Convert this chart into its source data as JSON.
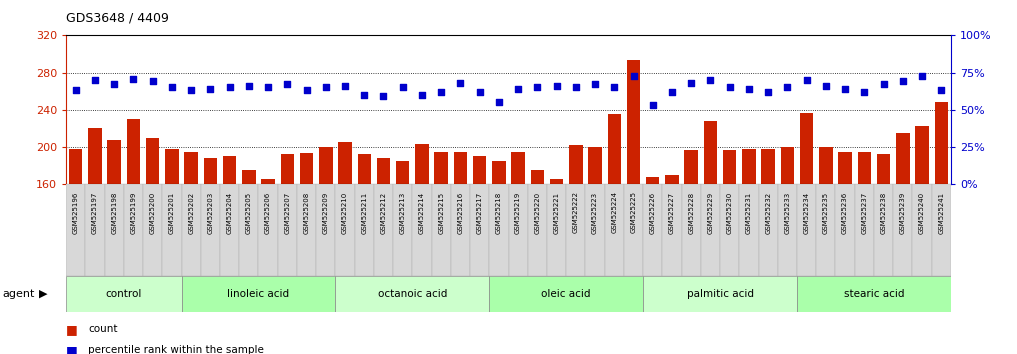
{
  "title": "GDS3648 / 4409",
  "samples": [
    "GSM525196",
    "GSM525197",
    "GSM525198",
    "GSM525199",
    "GSM525200",
    "GSM525201",
    "GSM525202",
    "GSM525203",
    "GSM525204",
    "GSM525205",
    "GSM525206",
    "GSM525207",
    "GSM525208",
    "GSM525209",
    "GSM525210",
    "GSM525211",
    "GSM525212",
    "GSM525213",
    "GSM525214",
    "GSM525215",
    "GSM525216",
    "GSM525217",
    "GSM525218",
    "GSM525219",
    "GSM525220",
    "GSM525221",
    "GSM525222",
    "GSM525223",
    "GSM525224",
    "GSM525225",
    "GSM525226",
    "GSM525227",
    "GSM525228",
    "GSM525229",
    "GSM525230",
    "GSM525231",
    "GSM525232",
    "GSM525233",
    "GSM525234",
    "GSM525235",
    "GSM525236",
    "GSM525237",
    "GSM525238",
    "GSM525239",
    "GSM525240",
    "GSM525241"
  ],
  "count_values": [
    198,
    220,
    207,
    230,
    210,
    198,
    195,
    188,
    190,
    175,
    165,
    192,
    193,
    200,
    205,
    192,
    188,
    185,
    203,
    194,
    195,
    190,
    185,
    195,
    175,
    165,
    202,
    200,
    235,
    293,
    168,
    170,
    197,
    228,
    197,
    198,
    198,
    200,
    237,
    200,
    194,
    195,
    192,
    215,
    222,
    248
  ],
  "percentile_values": [
    63,
    70,
    67,
    71,
    69,
    65,
    63,
    64,
    65,
    66,
    65,
    67,
    63,
    65,
    66,
    60,
    59,
    65,
    60,
    62,
    68,
    62,
    55,
    64,
    65,
    66,
    65,
    67,
    65,
    73,
    53,
    62,
    68,
    70,
    65,
    64,
    62,
    65,
    70,
    66,
    64,
    62,
    67,
    69,
    73,
    63
  ],
  "groups": [
    {
      "name": "control",
      "start": 0,
      "end": 6,
      "color": "#ccffcc"
    },
    {
      "name": "linoleic acid",
      "start": 6,
      "end": 14,
      "color": "#aaffaa"
    },
    {
      "name": "octanoic acid",
      "start": 14,
      "end": 22,
      "color": "#ccffcc"
    },
    {
      "name": "oleic acid",
      "start": 22,
      "end": 30,
      "color": "#aaffaa"
    },
    {
      "name": "palmitic acid",
      "start": 30,
      "end": 38,
      "color": "#ccffcc"
    },
    {
      "name": "stearic acid",
      "start": 38,
      "end": 46,
      "color": "#aaffaa"
    }
  ],
  "ylim_left": [
    160,
    320
  ],
  "ylim_right": [
    0,
    100
  ],
  "yticks_left": [
    160,
    200,
    240,
    280,
    320
  ],
  "yticks_right": [
    0,
    25,
    50,
    75,
    100
  ],
  "bar_color": "#cc2200",
  "dot_color": "#0000cc",
  "bg_color": "#ffffff",
  "agent_label": "agent",
  "legend_count": "count",
  "legend_pct": "percentile rank within the sample"
}
